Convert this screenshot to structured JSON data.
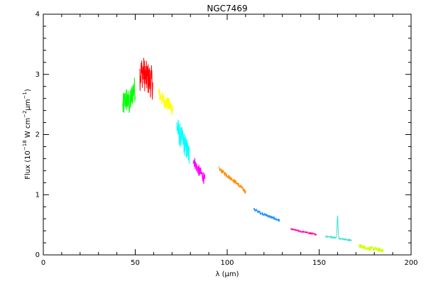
{
  "chart_data": {
    "type": "line",
    "title": "NGC7469",
    "xlabel": "λ (μm)",
    "ylabel_base": "Flux (10",
    "ylabel_exp1": "−18",
    "ylabel_mid": " W cm",
    "ylabel_exp2": "−2",
    "ylabel_mid2": "μm",
    "ylabel_exp3": "−1",
    "ylabel_end": ")",
    "xlim": [
      0,
      200
    ],
    "ylim": [
      0,
      4.0
    ],
    "xticks": [
      0,
      50,
      100,
      150,
      200
    ],
    "yticks": [
      0,
      1,
      2,
      3,
      4
    ],
    "x_minor_step": 10,
    "y_minor_step": 0.2,
    "grid": false,
    "segments": [
      {
        "color": "#00ff00",
        "x": [
          43.2,
          45,
          47,
          49,
          50.0
        ],
        "y": [
          2.45,
          2.6,
          2.5,
          2.75,
          2.75
        ],
        "noise": 0.22
      },
      {
        "color": "#ff0000",
        "x": [
          52.5,
          54,
          56,
          58,
          59.5
        ],
        "y": [
          3.0,
          3.05,
          2.95,
          2.9,
          2.85
        ],
        "noise": 0.28
      },
      {
        "color": "#ffff00",
        "x": [
          62.5,
          64,
          66,
          68,
          70.5
        ],
        "y": [
          2.7,
          2.62,
          2.55,
          2.5,
          2.42
        ],
        "noise": 0.12
      },
      {
        "color": "#00ffff",
        "x": [
          72.5,
          74,
          76,
          78,
          79.5
        ],
        "y": [
          2.15,
          2.0,
          1.9,
          1.75,
          1.65
        ],
        "noise": 0.2
      },
      {
        "color": "#ff00ff",
        "x": [
          81.5,
          83,
          85,
          87,
          88.0
        ],
        "y": [
          1.6,
          1.48,
          1.38,
          1.3,
          1.22
        ],
        "noise": 0.1
      },
      {
        "color": "#ff8c00",
        "x": [
          95.5,
          100,
          105,
          110.0
        ],
        "y": [
          1.43,
          1.32,
          1.2,
          1.05
        ],
        "noise": 0.035
      },
      {
        "color": "#1e90ff",
        "x": [
          114.5,
          118,
          122,
          128.5
        ],
        "y": [
          0.76,
          0.7,
          0.65,
          0.57
        ],
        "noise": 0.025
      },
      {
        "color": "#ff00aa",
        "x": [
          134.5,
          140,
          148.5
        ],
        "y": [
          0.43,
          0.39,
          0.34
        ],
        "noise": 0.012
      },
      {
        "color": "#40e0d0",
        "x": [
          153.5,
          158,
          162,
          167.5
        ],
        "y": [
          0.31,
          0.29,
          0.27,
          0.24
        ],
        "noise": 0.012,
        "peak_x": 160.0,
        "peak_y": 0.66
      },
      {
        "color": "#ccff00",
        "x": [
          171.5,
          175,
          180,
          185.0
        ],
        "y": [
          0.15,
          0.12,
          0.1,
          0.07
        ],
        "noise": 0.035
      }
    ]
  }
}
